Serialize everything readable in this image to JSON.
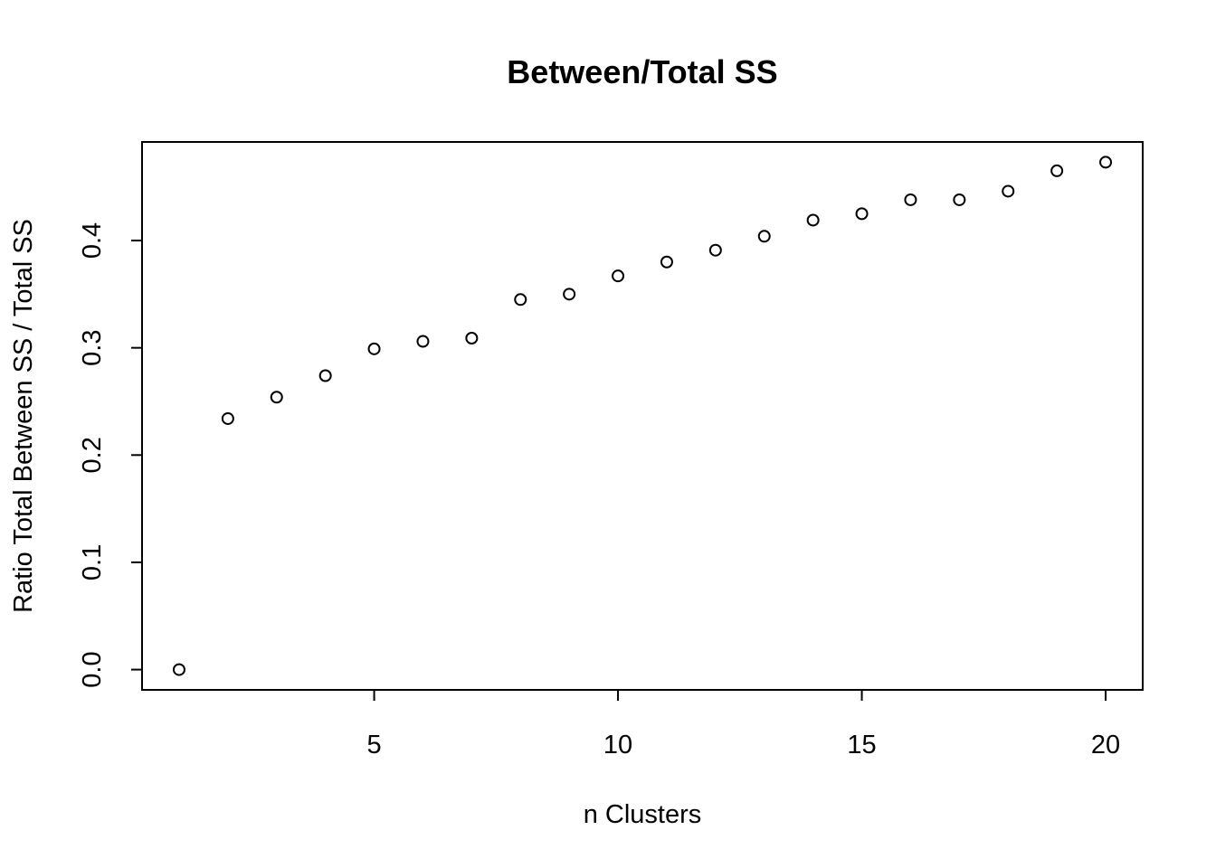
{
  "chart_data": {
    "type": "scatter",
    "title": "Between/Total SS",
    "xlabel": "n Clusters",
    "ylabel": "Ratio Total Between SS / Total SS",
    "x": [
      1,
      2,
      3,
      4,
      5,
      6,
      7,
      8,
      9,
      10,
      11,
      12,
      13,
      14,
      15,
      16,
      17,
      18,
      19,
      20
    ],
    "y": [
      0.0,
      0.234,
      0.254,
      0.274,
      0.299,
      0.306,
      0.309,
      0.345,
      0.35,
      0.367,
      0.38,
      0.391,
      0.404,
      0.419,
      0.425,
      0.438,
      0.438,
      0.446,
      0.465,
      0.473
    ],
    "xlim": [
      0.24,
      20.76
    ],
    "ylim": [
      -0.0189,
      0.4919
    ],
    "xticks": [
      5,
      10,
      15,
      20
    ],
    "xtick_labels": [
      "5",
      "10",
      "15",
      "20"
    ],
    "yticks": [
      0.0,
      0.1,
      0.2,
      0.3,
      0.4
    ],
    "ytick_labels": [
      "0.0",
      "0.1",
      "0.2",
      "0.3",
      "0.4"
    ],
    "marker": "open-circle",
    "grid": false,
    "legend": "none",
    "colors": {
      "marker": "#000000",
      "axes": "#000000",
      "background": "#ffffff"
    }
  }
}
